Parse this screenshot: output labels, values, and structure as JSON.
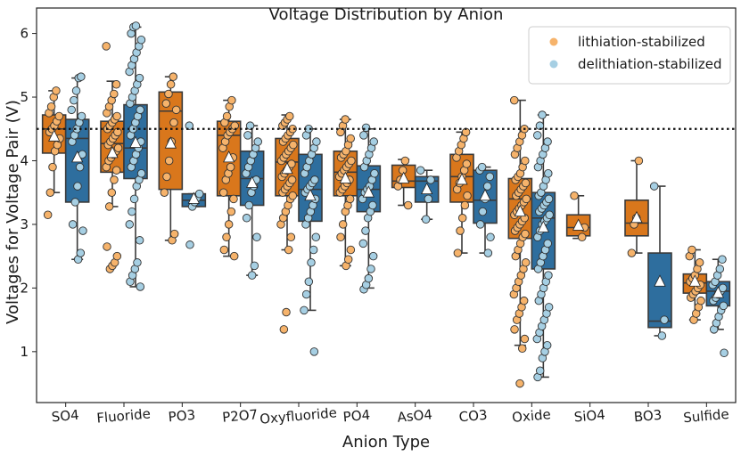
{
  "chart_data": {
    "type": "box",
    "title": "Voltage Distribution by Anion",
    "xlabel": "Anion Type",
    "ylabel": "Voltages for Voltage Pair (V)",
    "ylim": [
      0.2,
      6.4
    ],
    "yticks": [
      1,
      2,
      3,
      4,
      5,
      6
    ],
    "reference_line_y": 4.5,
    "categories": [
      "SO4",
      "Fluoride",
      "PO3",
      "P2O7",
      "Oxyfluoride",
      "PO4",
      "AsO4",
      "CO3",
      "Oxide",
      "SiO4",
      "BO3",
      "Sulfide"
    ],
    "legend_position": "top-right",
    "series": [
      {
        "name": "lithiation-stabilized",
        "box_color": "#d9771c",
        "point_color": "#f6b36b",
        "stats": [
          {
            "whislo": 3.5,
            "q1": 4.12,
            "median": 4.5,
            "q3": 4.72,
            "whishi": 5.1,
            "mean": 4.38
          },
          {
            "whislo": 3.28,
            "q1": 3.82,
            "median": 4.27,
            "q3": 4.62,
            "whishi": 5.25,
            "mean": 4.12
          },
          {
            "whislo": 2.75,
            "q1": 3.55,
            "median": 4.78,
            "q3": 5.08,
            "whishi": 5.32,
            "mean": 4.27
          },
          {
            "whislo": 2.5,
            "q1": 3.45,
            "median": 4.4,
            "q3": 4.62,
            "whishi": 4.95,
            "mean": 4.05
          },
          {
            "whislo": 2.6,
            "q1": 3.45,
            "median": 3.98,
            "q3": 4.35,
            "whishi": 4.72,
            "mean": 3.87
          },
          {
            "whislo": 2.35,
            "q1": 3.45,
            "median": 3.82,
            "q3": 4.15,
            "whishi": 4.65,
            "mean": 3.72
          },
          {
            "whislo": 3.3,
            "q1": 3.58,
            "median": 3.68,
            "q3": 3.93,
            "whishi": 4.02,
            "mean": 3.72
          },
          {
            "whislo": 2.55,
            "q1": 3.35,
            "median": 3.75,
            "q3": 4.1,
            "whishi": 4.45,
            "mean": 3.7
          },
          {
            "whislo": 1.1,
            "q1": 2.78,
            "median": 3.4,
            "q3": 3.72,
            "whishi": 4.95,
            "mean": 3.2
          },
          {
            "whislo": 2.78,
            "q1": 2.82,
            "median": 2.95,
            "q3": 3.15,
            "whishi": 3.45,
            "mean": 2.98
          },
          {
            "whislo": 2.55,
            "q1": 2.82,
            "median": 3.02,
            "q3": 3.38,
            "whishi": 4.0,
            "mean": 3.1
          },
          {
            "whislo": 1.5,
            "q1": 1.92,
            "median": 2.08,
            "q3": 2.22,
            "whishi": 2.6,
            "mean": 2.1
          }
        ],
        "points": [
          [
            3.15,
            3.5,
            3.9,
            4.15,
            4.25,
            4.35,
            4.45,
            4.5,
            4.55,
            4.62,
            4.7,
            4.75,
            4.85,
            5.0,
            5.1
          ],
          [
            2.3,
            2.35,
            2.4,
            2.5,
            2.65,
            3.28,
            3.5,
            3.7,
            3.85,
            3.9,
            4.0,
            4.05,
            4.1,
            4.15,
            4.2,
            4.25,
            4.3,
            4.35,
            4.4,
            4.45,
            4.5,
            4.55,
            4.6,
            4.65,
            4.7,
            4.75,
            4.85,
            4.95,
            5.05,
            5.2,
            5.8
          ],
          [
            2.75,
            2.85,
            3.5,
            3.75,
            4.0,
            4.3,
            4.6,
            4.8,
            4.9,
            5.05,
            5.2,
            5.32
          ],
          [
            2.5,
            2.6,
            2.8,
            3.0,
            3.2,
            3.4,
            3.5,
            3.7,
            3.8,
            3.9,
            4.05,
            4.2,
            4.3,
            4.4,
            4.45,
            4.5,
            4.55,
            4.6,
            4.7,
            4.85,
            4.95
          ],
          [
            1.35,
            1.62,
            2.6,
            2.8,
            3.0,
            3.1,
            3.2,
            3.3,
            3.4,
            3.45,
            3.5,
            3.55,
            3.6,
            3.65,
            3.7,
            3.75,
            3.8,
            3.85,
            3.9,
            3.95,
            4.0,
            4.05,
            4.1,
            4.15,
            4.2,
            4.25,
            4.3,
            4.35,
            4.4,
            4.45,
            4.5,
            4.55,
            4.6,
            4.65,
            4.7
          ],
          [
            2.35,
            2.45,
            2.6,
            2.8,
            3.0,
            3.2,
            3.3,
            3.4,
            3.5,
            3.55,
            3.6,
            3.65,
            3.7,
            3.75,
            3.8,
            3.85,
            3.9,
            3.95,
            4.0,
            4.05,
            4.1,
            4.15,
            4.25,
            4.35,
            4.45,
            4.55,
            4.65
          ],
          [
            3.3,
            3.6,
            3.7,
            3.85,
            4.0
          ],
          [
            2.55,
            2.9,
            3.1,
            3.3,
            3.45,
            3.55,
            3.65,
            3.75,
            3.85,
            3.95,
            4.05,
            4.15,
            4.25,
            4.35,
            4.45
          ],
          [
            0.5,
            1.05,
            1.2,
            1.35,
            1.5,
            1.6,
            1.7,
            1.8,
            1.9,
            2.0,
            2.1,
            2.2,
            2.3,
            2.4,
            2.5,
            2.6,
            2.7,
            2.8,
            2.85,
            2.9,
            2.95,
            3.0,
            3.05,
            3.1,
            3.15,
            3.2,
            3.25,
            3.3,
            3.35,
            3.4,
            3.45,
            3.5,
            3.55,
            3.6,
            3.65,
            3.7,
            3.75,
            3.8,
            3.9,
            4.0,
            4.1,
            4.2,
            4.3,
            4.4,
            4.5,
            4.95
          ],
          [
            2.8,
            2.95,
            3.45
          ],
          [
            2.55,
            3.0,
            3.1,
            4.0
          ],
          [
            1.5,
            1.6,
            1.7,
            1.8,
            1.85,
            1.9,
            1.95,
            2.0,
            2.05,
            2.1,
            2.15,
            2.2,
            2.3,
            2.4,
            2.5,
            2.6
          ]
        ]
      },
      {
        "name": "delithiation-stabilized",
        "box_color": "#2e6e9e",
        "point_color": "#a6cfe3",
        "stats": [
          {
            "whislo": 2.45,
            "q1": 3.35,
            "median": 4.35,
            "q3": 4.65,
            "whishi": 5.3,
            "mean": 4.05
          },
          {
            "whislo": 2.02,
            "q1": 3.72,
            "median": 4.2,
            "q3": 4.88,
            "whishi": 6.1,
            "mean": 4.28
          },
          {
            "whislo": 3.28,
            "q1": 3.28,
            "median": 3.38,
            "q3": 3.48,
            "whishi": 3.48,
            "mean": 3.4
          },
          {
            "whislo": 2.2,
            "q1": 3.3,
            "median": 3.72,
            "q3": 4.15,
            "whishi": 4.55,
            "mean": 3.65
          },
          {
            "whislo": 1.65,
            "q1": 3.05,
            "median": 3.55,
            "q3": 4.1,
            "whishi": 4.5,
            "mean": 3.45
          },
          {
            "whislo": 2.0,
            "q1": 3.2,
            "median": 3.55,
            "q3": 3.92,
            "whishi": 4.5,
            "mean": 3.5
          },
          {
            "whislo": 3.08,
            "q1": 3.35,
            "median": 3.68,
            "q3": 3.75,
            "whishi": 3.85,
            "mean": 3.55
          },
          {
            "whislo": 2.55,
            "q1": 3.02,
            "median": 3.38,
            "q3": 3.85,
            "whishi": 3.9,
            "mean": 3.45
          },
          {
            "whislo": 0.6,
            "q1": 2.3,
            "median": 3.1,
            "q3": 3.5,
            "whishi": 4.72,
            "mean": 2.95
          },
          null,
          {
            "whislo": 1.25,
            "q1": 1.38,
            "median": 1.48,
            "q3": 2.55,
            "whishi": 3.6,
            "mean": 2.1
          },
          {
            "whislo": 1.35,
            "q1": 1.72,
            "median": 1.95,
            "q3": 2.1,
            "whishi": 2.45,
            "mean": 1.92
          }
        ],
        "points": [
          [
            2.45,
            2.55,
            2.9,
            3.0,
            3.35,
            3.6,
            3.9,
            4.1,
            4.3,
            4.4,
            4.5,
            4.6,
            4.7,
            4.8,
            4.95,
            5.1,
            5.3,
            5.32
          ],
          [
            2.02,
            2.1,
            2.2,
            2.3,
            2.4,
            2.75,
            3.0,
            3.2,
            3.4,
            3.6,
            3.7,
            3.8,
            3.9,
            4.0,
            4.1,
            4.2,
            4.3,
            4.4,
            4.5,
            4.6,
            4.7,
            4.8,
            4.9,
            5.0,
            5.1,
            5.2,
            5.3,
            5.4,
            5.5,
            5.6,
            5.7,
            5.8,
            5.9,
            6.0,
            6.1,
            6.12
          ],
          [
            2.68,
            3.28,
            3.35,
            3.42,
            3.48,
            4.55
          ],
          [
            2.2,
            2.35,
            2.8,
            3.1,
            3.3,
            3.5,
            3.6,
            3.7,
            3.8,
            3.9,
            4.0,
            4.1,
            4.2,
            4.3,
            4.4,
            4.55
          ],
          [
            1.0,
            1.65,
            1.9,
            2.1,
            2.4,
            2.6,
            2.8,
            3.0,
            3.1,
            3.2,
            3.3,
            3.4,
            3.5,
            3.55,
            3.6,
            3.65,
            3.7,
            3.8,
            3.9,
            4.0,
            4.1,
            4.2,
            4.3,
            4.4,
            4.5
          ],
          [
            1.98,
            2.05,
            2.15,
            2.3,
            2.5,
            2.7,
            2.9,
            3.1,
            3.2,
            3.3,
            3.4,
            3.5,
            3.55,
            3.6,
            3.7,
            3.8,
            3.9,
            4.0,
            4.1,
            4.2,
            4.3,
            4.4,
            4.52
          ],
          [
            3.08,
            3.4,
            3.7,
            3.85
          ],
          [
            2.55,
            2.8,
            3.0,
            3.2,
            3.4,
            3.6,
            3.75,
            3.85,
            3.9
          ],
          [
            0.6,
            0.7,
            0.9,
            1.0,
            1.1,
            1.2,
            1.3,
            1.4,
            1.5,
            1.6,
            1.7,
            1.8,
            1.9,
            2.0,
            2.1,
            2.2,
            2.3,
            2.4,
            2.5,
            2.6,
            2.7,
            2.8,
            2.9,
            3.0,
            3.05,
            3.1,
            3.15,
            3.2,
            3.25,
            3.3,
            3.35,
            3.4,
            3.45,
            3.5,
            3.6,
            3.7,
            3.8,
            3.9,
            4.0,
            4.1,
            4.2,
            4.3,
            4.4,
            4.55,
            4.72
          ],
          [],
          [
            1.25,
            1.5,
            3.6
          ],
          [
            0.98,
            1.35,
            1.45,
            1.55,
            1.65,
            1.72,
            1.8,
            1.85,
            1.9,
            1.95,
            2.0,
            2.05,
            2.1,
            2.2,
            2.3,
            2.45
          ]
        ]
      }
    ]
  }
}
